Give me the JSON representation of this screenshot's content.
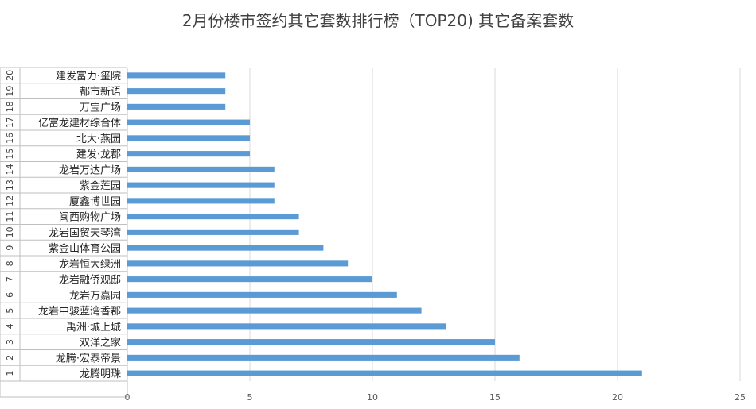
{
  "chart_data": {
    "type": "bar",
    "orientation": "horizontal",
    "title": "2月份楼市签约其它套数排行榜（TOP20) 其它备案套数",
    "ranks": [
      "1",
      "2",
      "3",
      "4",
      "5",
      "6",
      "7",
      "8",
      "9",
      "10",
      "11",
      "12",
      "13",
      "14",
      "15",
      "16",
      "17",
      "18",
      "19",
      "20"
    ],
    "categories": [
      "龙腾明珠",
      "龙腾·宏泰帝景",
      "双洋之家",
      "禹洲·城上城",
      "龙岩中骏蓝湾香郡",
      "龙岩万嘉园",
      "龙岩融侨观邸",
      "龙岩恒大绿洲",
      "紫金山体育公园",
      "龙岩国贸天琴湾",
      "闽西购物广场",
      "厦鑫博世园",
      "紫金莲园",
      "龙岩万达广场",
      "建发·龙郡",
      "北大·燕园",
      "亿富龙建材综合体",
      "万宝广场",
      "都市新语",
      "建发富力·玺院"
    ],
    "values": [
      21,
      16,
      15,
      13,
      12,
      11,
      10,
      9,
      8,
      7,
      7,
      6,
      6,
      6,
      5,
      5,
      5,
      4,
      4,
      4
    ],
    "xlim": [
      0,
      25
    ],
    "xticks": [
      0,
      5,
      10,
      15,
      20,
      25
    ],
    "grid": true,
    "bar_color": "#5B9BD5"
  }
}
